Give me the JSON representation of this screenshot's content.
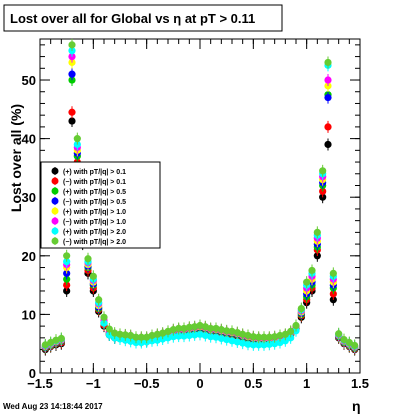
{
  "chart_data": {
    "type": "scatter",
    "title": "Lost over all for Global vs   η at pT > 0.11",
    "xlabel": "η",
    "ylabel": "Lost over all (%)",
    "xlim": [
      -1.5,
      1.5
    ],
    "ylim": [
      0,
      57
    ],
    "x_ticks": [
      -1.5,
      -1,
      -0.5,
      0,
      0.5,
      1,
      1.5
    ],
    "x_tick_labels": [
      "−1.5",
      "−1",
      "−0.5",
      "0",
      "0.5",
      "1",
      "1.5"
    ],
    "y_ticks": [
      0,
      10,
      20,
      30,
      40,
      50
    ],
    "y_tick_labels": [
      "0",
      "10",
      "20",
      "30",
      "40",
      "50"
    ],
    "timestamp": "Wed Aug 23 14:18:44 2017",
    "legend_position": "left-middle",
    "x": [
      -1.45,
      -1.4,
      -1.35,
      -1.3,
      -1.25,
      -1.2,
      -1.15,
      -1.1,
      -1.05,
      -1.0,
      -0.95,
      -0.9,
      -0.85,
      -0.8,
      -0.75,
      -0.7,
      -0.65,
      -0.6,
      -0.55,
      -0.5,
      -0.45,
      -0.4,
      -0.35,
      -0.3,
      -0.25,
      -0.2,
      -0.15,
      -0.1,
      -0.05,
      0.0,
      0.05,
      0.1,
      0.15,
      0.2,
      0.25,
      0.3,
      0.35,
      0.4,
      0.45,
      0.5,
      0.55,
      0.6,
      0.65,
      0.7,
      0.75,
      0.8,
      0.85,
      0.9,
      0.95,
      1.0,
      1.05,
      1.1,
      1.15,
      1.2,
      1.25,
      1.3,
      1.35,
      1.4,
      1.45
    ],
    "series": [
      {
        "name": "(+) with pT/|q| > 0.1",
        "color": "#000000",
        "values": [
          4.0,
          4.5,
          4.8,
          5.0,
          14.0,
          43.0,
          35.0,
          22.0,
          17.0,
          14.0,
          10.5,
          8.0,
          6.5,
          6.0,
          6.0,
          6.0,
          5.8,
          5.5,
          5.5,
          5.5,
          5.8,
          6.0,
          6.2,
          6.5,
          6.8,
          7.0,
          7.0,
          7.2,
          7.3,
          7.5,
          7.3,
          7.0,
          7.0,
          6.8,
          6.6,
          6.5,
          6.3,
          6.0,
          5.8,
          5.6,
          5.5,
          5.5,
          5.5,
          5.6,
          5.8,
          6.0,
          6.5,
          7.5,
          9.5,
          12.0,
          14.0,
          20.0,
          30.0,
          39.0,
          12.5,
          6.0,
          5.0,
          4.5,
          4.0
        ]
      },
      {
        "name": "(−) with pT/|q| > 0.1",
        "color": "#ff0000",
        "values": [
          4.2,
          4.6,
          5.0,
          5.2,
          15.0,
          44.5,
          36.0,
          23.0,
          17.5,
          14.5,
          10.8,
          8.2,
          6.6,
          6.1,
          6.1,
          6.0,
          5.9,
          5.6,
          5.6,
          5.6,
          5.9,
          6.1,
          6.3,
          6.6,
          6.9,
          7.1,
          7.1,
          7.3,
          7.4,
          7.6,
          7.4,
          7.1,
          7.1,
          6.9,
          6.7,
          6.6,
          6.4,
          6.1,
          5.9,
          5.7,
          5.6,
          5.6,
          5.6,
          5.7,
          5.9,
          6.1,
          6.6,
          7.6,
          9.8,
          12.5,
          14.5,
          21.0,
          31.0,
          42.0,
          13.5,
          6.1,
          5.1,
          4.6,
          4.1
        ]
      },
      {
        "name": "(+) with pT/|q| > 0.5",
        "color": "#00cc00",
        "values": [
          4.3,
          4.7,
          5.1,
          5.4,
          16.0,
          50.0,
          37.0,
          24.0,
          18.0,
          15.0,
          11.0,
          8.5,
          6.8,
          6.2,
          6.2,
          6.1,
          6.0,
          5.7,
          5.7,
          5.7,
          6.0,
          6.2,
          6.4,
          6.7,
          7.0,
          7.2,
          7.2,
          7.4,
          7.5,
          7.7,
          7.5,
          7.2,
          7.2,
          7.0,
          6.8,
          6.7,
          6.5,
          6.2,
          6.0,
          5.8,
          5.7,
          5.7,
          5.7,
          5.8,
          6.0,
          6.2,
          6.7,
          7.7,
          10.0,
          13.0,
          15.0,
          21.5,
          32.0,
          47.5,
          14.5,
          6.2,
          5.2,
          4.7,
          4.2
        ]
      },
      {
        "name": "(−) with pT/|q| > 0.5",
        "color": "#0000ff",
        "values": [
          4.4,
          4.8,
          5.2,
          5.5,
          17.0,
          51.0,
          37.5,
          24.5,
          18.2,
          15.2,
          11.2,
          8.6,
          6.9,
          6.3,
          6.3,
          6.2,
          6.1,
          5.8,
          5.8,
          5.8,
          6.1,
          6.3,
          6.5,
          6.8,
          7.1,
          7.3,
          7.3,
          7.5,
          7.6,
          7.8,
          7.6,
          7.3,
          7.3,
          7.1,
          6.9,
          6.8,
          6.6,
          6.3,
          6.1,
          5.9,
          5.8,
          5.8,
          5.8,
          5.9,
          6.1,
          6.3,
          6.8,
          7.8,
          10.2,
          13.5,
          15.5,
          22.0,
          32.5,
          47.0,
          15.0,
          6.3,
          5.3,
          4.8,
          4.3
        ]
      },
      {
        "name": "(+) with pT/|q| > 1.0",
        "color": "#ffff00",
        "values": [
          4.5,
          4.9,
          5.3,
          5.6,
          18.0,
          53.0,
          38.0,
          25.0,
          18.5,
          15.5,
          11.5,
          8.8,
          7.0,
          6.4,
          6.4,
          6.3,
          6.2,
          5.9,
          5.9,
          5.9,
          6.2,
          6.4,
          6.6,
          6.9,
          7.2,
          7.4,
          7.4,
          7.6,
          7.7,
          7.9,
          7.7,
          7.4,
          7.4,
          7.2,
          7.0,
          6.9,
          6.7,
          6.4,
          6.2,
          6.0,
          5.9,
          5.9,
          5.9,
          6.0,
          6.2,
          6.4,
          6.9,
          7.9,
          10.4,
          14.0,
          16.0,
          22.5,
          33.0,
          49.0,
          15.5,
          6.4,
          5.4,
          4.9,
          4.4
        ]
      },
      {
        "name": "(−) with pT/|q| > 1.0",
        "color": "#ff00ff",
        "values": [
          4.6,
          5.0,
          5.4,
          5.7,
          18.5,
          54.0,
          38.5,
          25.5,
          18.8,
          15.8,
          11.8,
          9.0,
          7.1,
          6.5,
          6.5,
          6.4,
          6.3,
          6.0,
          6.0,
          6.0,
          6.3,
          6.5,
          6.7,
          7.0,
          7.3,
          7.5,
          7.5,
          7.7,
          7.8,
          8.0,
          7.8,
          7.5,
          7.5,
          7.3,
          7.1,
          7.0,
          6.8,
          6.5,
          6.3,
          6.1,
          6.0,
          6.0,
          6.0,
          6.1,
          6.3,
          6.5,
          7.0,
          8.0,
          10.6,
          14.5,
          16.5,
          23.0,
          33.5,
          50.0,
          16.0,
          6.5,
          5.5,
          5.0,
          4.5
        ]
      },
      {
        "name": "(+) with pT/|q| > 2.0",
        "color": "#00ffff",
        "values": [
          4.7,
          5.1,
          5.5,
          5.8,
          19.0,
          55.0,
          39.0,
          26.0,
          19.0,
          16.0,
          12.0,
          8.5,
          6.5,
          6.0,
          5.8,
          5.6,
          5.4,
          5.2,
          5.2,
          5.3,
          5.5,
          5.6,
          5.8,
          6.0,
          6.2,
          6.3,
          6.3,
          6.4,
          6.5,
          6.6,
          6.4,
          6.2,
          6.1,
          5.9,
          5.7,
          5.5,
          5.3,
          5.1,
          4.9,
          4.8,
          4.8,
          4.8,
          4.9,
          5.0,
          5.2,
          5.5,
          6.0,
          7.2,
          10.8,
          15.0,
          17.0,
          23.5,
          34.0,
          52.5,
          16.5,
          6.6,
          5.6,
          5.1,
          4.6
        ]
      },
      {
        "name": "(−) with pT/|q| > 2.0",
        "color": "#66cc33",
        "values": [
          4.8,
          5.2,
          5.6,
          5.9,
          20.0,
          56.0,
          40.0,
          27.0,
          19.5,
          16.5,
          12.5,
          9.5,
          7.5,
          6.8,
          6.6,
          6.5,
          6.4,
          6.1,
          6.1,
          6.1,
          6.4,
          6.6,
          6.8,
          7.1,
          7.4,
          7.6,
          7.6,
          7.8,
          7.9,
          8.1,
          7.9,
          7.6,
          7.6,
          7.4,
          7.2,
          7.1,
          6.9,
          6.6,
          6.4,
          6.2,
          6.1,
          6.1,
          6.1,
          6.2,
          6.4,
          6.6,
          7.1,
          8.1,
          11.0,
          15.5,
          17.5,
          24.0,
          34.5,
          53.0,
          17.0,
          6.7,
          5.7,
          5.2,
          4.7
        ]
      }
    ]
  }
}
